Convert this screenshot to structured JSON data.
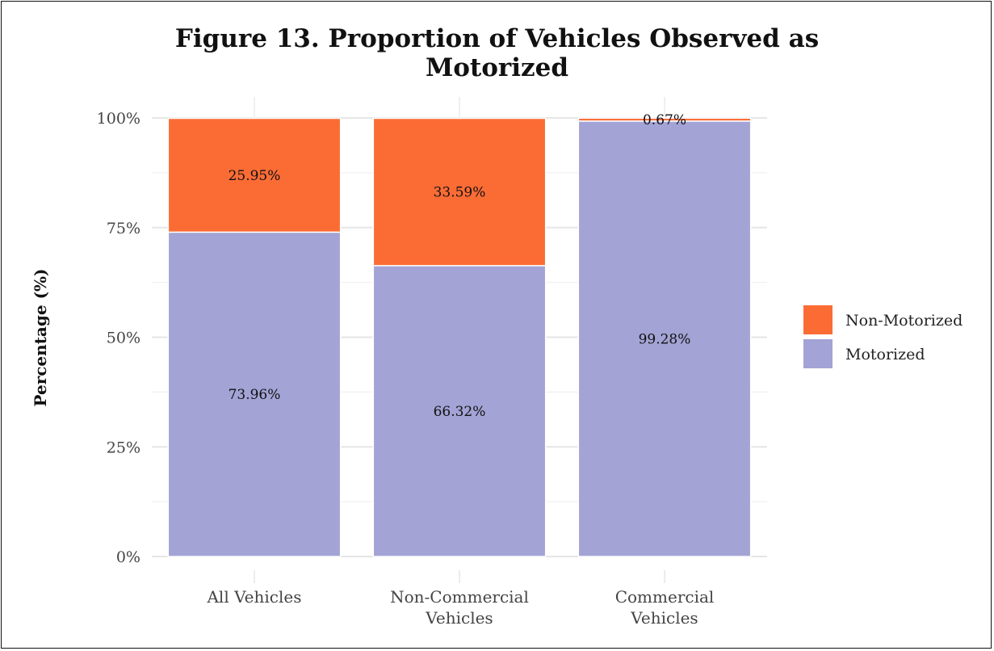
{
  "chart_data": {
    "type": "bar",
    "stacked": true,
    "title": "Figure 13. Proportion of Vehicles Observed as Motorized",
    "title_lines": [
      "Figure 13. Proportion of Vehicles Observed as",
      "Motorized"
    ],
    "xlabel": "",
    "ylabel": "Percentage (%)",
    "ylim": [
      0,
      100
    ],
    "yticks": [
      0,
      25,
      50,
      75,
      100
    ],
    "ytick_labels": [
      "0%",
      "25%",
      "50%",
      "75%",
      "100%"
    ],
    "grid": true,
    "categories": [
      "All Vehicles",
      "Non-Commercial Vehicles",
      "Commercial Vehicles"
    ],
    "category_lines": [
      [
        "All Vehicles"
      ],
      [
        "Non-Commercial",
        "Vehicles"
      ],
      [
        "Commercial",
        "Vehicles"
      ]
    ],
    "series": [
      {
        "name": "Motorized",
        "color": "#a3a3d6",
        "values": [
          73.96,
          66.32,
          99.28
        ],
        "labels": [
          "73.96%",
          "66.32%",
          "99.28%"
        ]
      },
      {
        "name": "Non-Motorized",
        "color": "#fb6c35",
        "values": [
          25.95,
          33.59,
          0.67
        ],
        "labels": [
          "25.95%",
          "33.59%",
          "0.67%"
        ]
      }
    ],
    "legend": {
      "placement": "right",
      "entries": [
        "Non-Motorized",
        "Motorized"
      ]
    }
  }
}
